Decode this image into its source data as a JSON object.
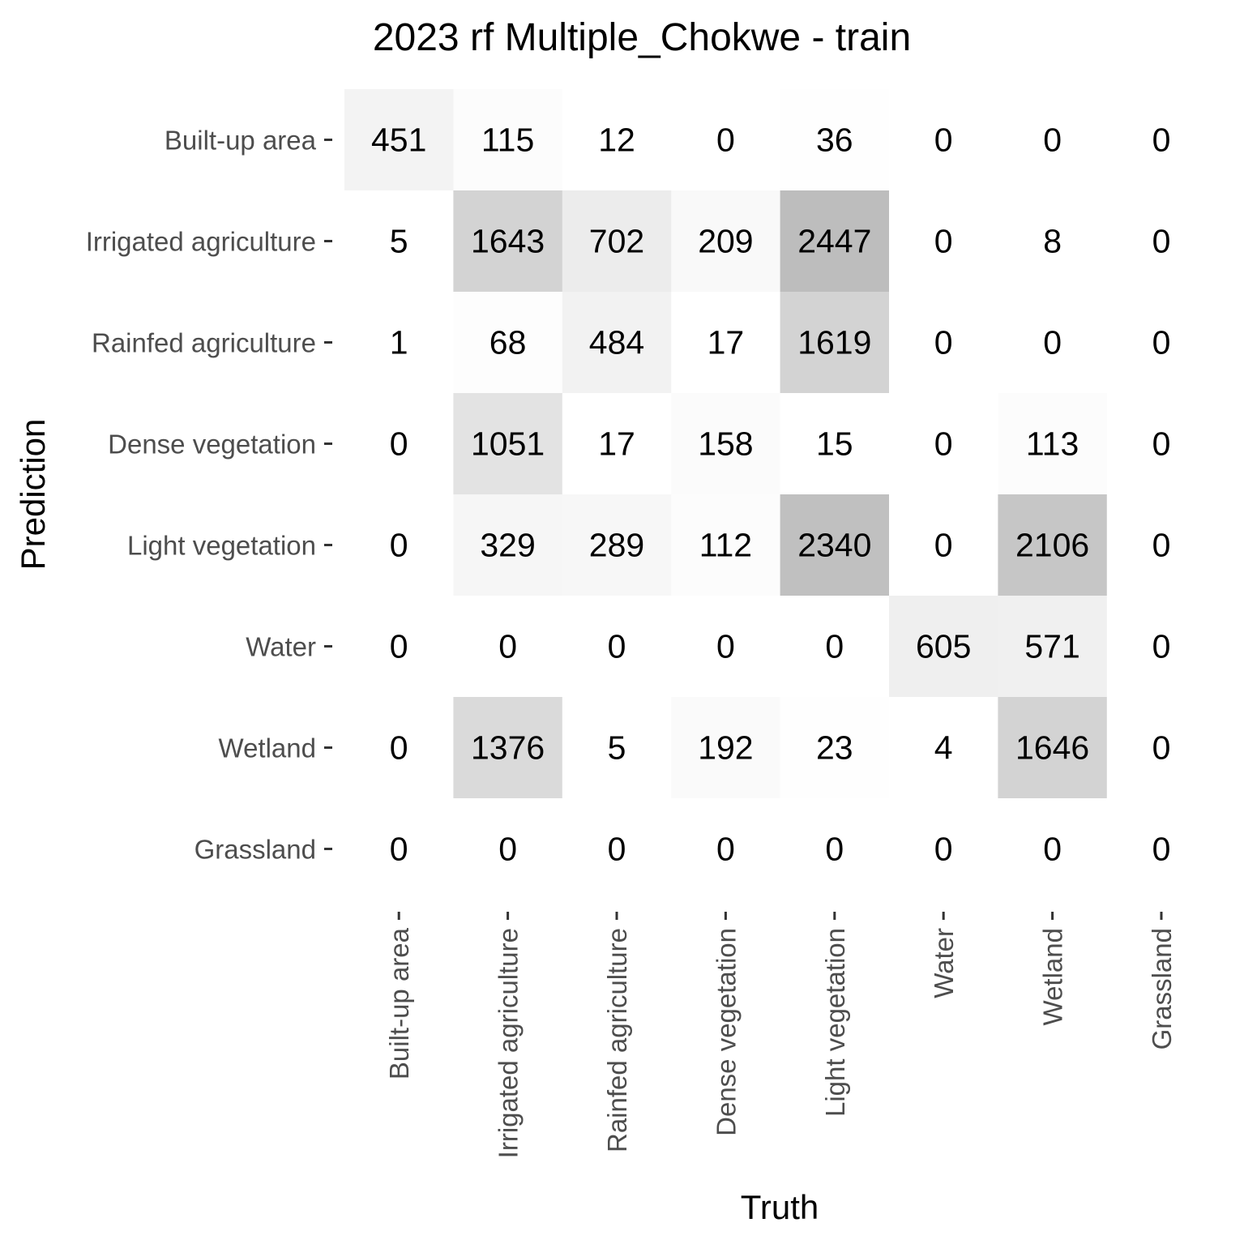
{
  "chart_data": {
    "type": "heatmap",
    "title": "2023 rf Multiple_Chokwe - train",
    "xlabel": "Truth",
    "ylabel": "Prediction",
    "x_categories": [
      "Built-up area",
      "Irrigated agriculture",
      "Rainfed agriculture",
      "Dense vegetation",
      "Light vegetation",
      "Water",
      "Wetland",
      "Grassland"
    ],
    "y_categories": [
      "Built-up area",
      "Irrigated agriculture",
      "Rainfed agriculture",
      "Dense vegetation",
      "Light vegetation",
      "Water",
      "Wetland",
      "Grassland"
    ],
    "values": [
      [
        451,
        115,
        12,
        0,
        36,
        0,
        0,
        0
      ],
      [
        5,
        1643,
        702,
        209,
        2447,
        0,
        8,
        0
      ],
      [
        1,
        68,
        484,
        17,
        1619,
        0,
        0,
        0
      ],
      [
        0,
        1051,
        17,
        158,
        15,
        0,
        113,
        0
      ],
      [
        0,
        329,
        289,
        112,
        2340,
        0,
        2106,
        0
      ],
      [
        0,
        0,
        0,
        0,
        0,
        605,
        571,
        0
      ],
      [
        0,
        1376,
        5,
        192,
        23,
        4,
        1646,
        0
      ],
      [
        0,
        0,
        0,
        0,
        0,
        0,
        0,
        0
      ]
    ],
    "color_low": "#ffffff",
    "color_high": "#bdbdbd",
    "grid": false
  }
}
